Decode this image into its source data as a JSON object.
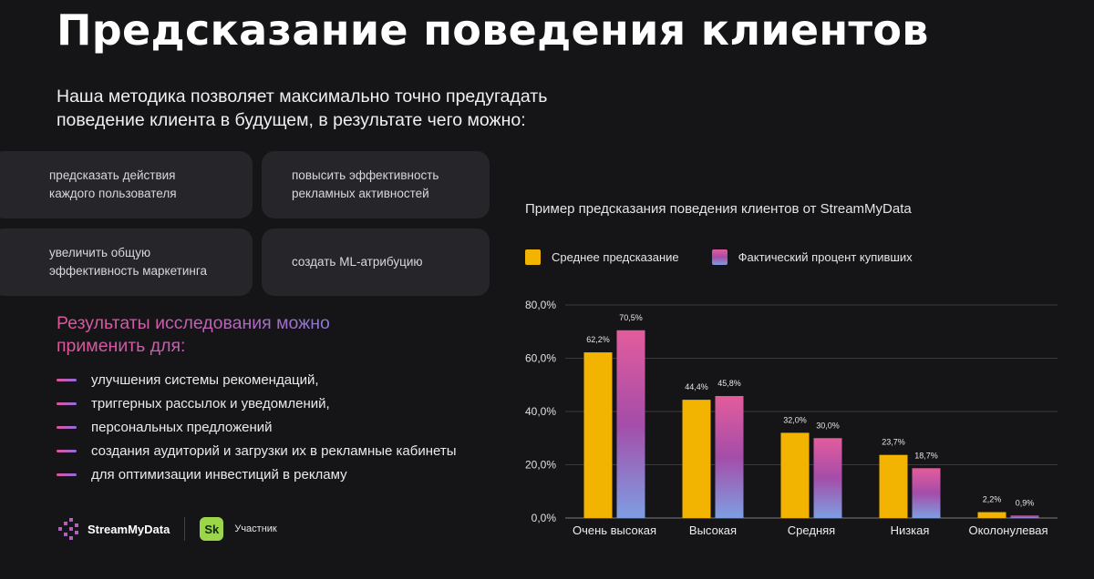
{
  "title": "Предсказание поведения клиентов",
  "intro": {
    "line1": "Наша  методика позволяет  максимально точно предугадать",
    "line2": "поведение клиента  в будущем, в результате чего можно:"
  },
  "cards": [
    {
      "line1": "предсказать действия",
      "line2": "каждого пользователя"
    },
    {
      "line1": "повысить эффективность",
      "line2": "рекламных активностей"
    },
    {
      "line1": "увеличить общую",
      "line2": "эффективность маркетинга"
    },
    {
      "line1": "создать ML-атрибуцию",
      "line2": ""
    }
  ],
  "results": {
    "title_line1": "Результаты исследования можно",
    "title_line2": "применить для:",
    "items": [
      "улучшения системы рекомендаций,",
      "триггерных рассылок и уведомлений,",
      "персональных предложений",
      "создания аудиторий и загрузки их в рекламные кабинеты",
      "для оптимизации инвестиций в рекламу"
    ]
  },
  "footer": {
    "brand": "StreamMyData",
    "partner_logo": "Sk",
    "partner_label": "Участник"
  },
  "icons": {
    "brand_logo": "streammydata-logo-icon",
    "bullet": "gradient-dash-icon"
  },
  "colors": {
    "background": "#151518",
    "card": "#26262a",
    "predicted": "#f2b400",
    "actual_top": "#e35c9c",
    "actual_mid": "#a44da9",
    "actual_bottom": "#7e9ee2",
    "grid": "#3a3a3e"
  },
  "chart_data": {
    "type": "bar",
    "title": "Пример предсказания поведения клиентов от StreamMyData",
    "categories": [
      "Очень высокая",
      "Высокая",
      "Средняя",
      "Низкая",
      "Околонулевая"
    ],
    "series": [
      {
        "name": "Среднее предсказание",
        "values": [
          62.2,
          44.4,
          32.0,
          23.7,
          2.2
        ],
        "labels": [
          "62,2%",
          "44,4%",
          "32,0%",
          "23,7%",
          "2,2%"
        ]
      },
      {
        "name": "Фактический процент купивших",
        "values": [
          70.5,
          45.8,
          30.0,
          18.7,
          0.9
        ],
        "labels": [
          "70,5%",
          "45,8%",
          "30,0%",
          "18,7%",
          "0,9%"
        ]
      }
    ],
    "yticks": [
      0,
      20,
      40,
      60,
      80
    ],
    "ytick_labels": [
      "0,0%",
      "20,0%",
      "40,0%",
      "60,0%",
      "80,0%"
    ],
    "ylim": [
      0,
      80
    ],
    "xlabel": "",
    "ylabel": "",
    "legend": "top-left",
    "grid": true
  }
}
